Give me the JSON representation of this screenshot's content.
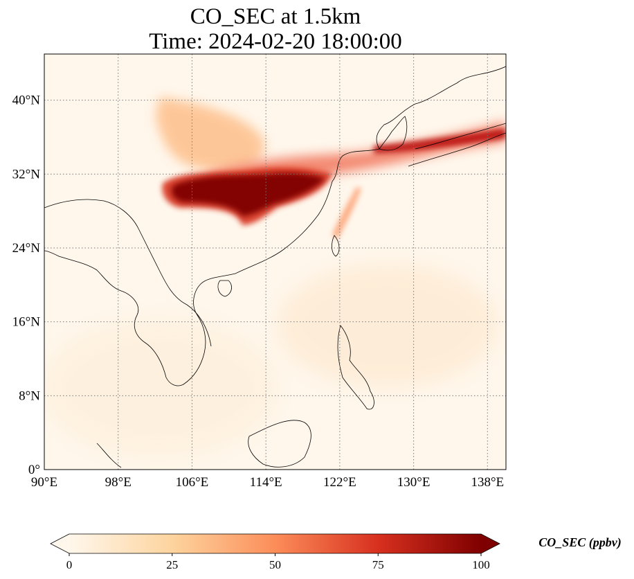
{
  "title": {
    "line1": "CO_SEC at 1.5km",
    "line2": "Time: 2024-02-20 18:00:00"
  },
  "map": {
    "lon_range": [
      90,
      140
    ],
    "lat_range": [
      0,
      45
    ],
    "lon_ticks": [
      {
        "value": 90,
        "label": "90°E"
      },
      {
        "value": 98,
        "label": "98°E"
      },
      {
        "value": 106,
        "label": "106°E"
      },
      {
        "value": 114,
        "label": "114°E"
      },
      {
        "value": 122,
        "label": "122°E"
      },
      {
        "value": 130,
        "label": "130°E"
      },
      {
        "value": 138,
        "label": "138°E"
      }
    ],
    "lat_ticks": [
      {
        "value": 0,
        "label": "0°"
      },
      {
        "value": 8,
        "label": "8°N"
      },
      {
        "value": 16,
        "label": "16°N"
      },
      {
        "value": 24,
        "label": "24°N"
      },
      {
        "value": 32,
        "label": "32°N"
      },
      {
        "value": 40,
        "label": "40°N"
      }
    ],
    "gridlines": "dotted gray",
    "plumes": [
      {
        "name": "plume-central-china-core",
        "lon": 111.5,
        "lat": 29.5,
        "value": 100
      },
      {
        "name": "plume-sichuan-west",
        "lon": 105.5,
        "lat": 30.0,
        "value": 90
      },
      {
        "name": "plume-yangtze-east",
        "lon": 117.5,
        "lat": 31.0,
        "value": 90
      },
      {
        "name": "plume-korea-strait",
        "lon": 127.5,
        "lat": 35.0,
        "value": 80
      },
      {
        "name": "plume-japan-band",
        "lon": 134.0,
        "lat": 35.2,
        "value": 65
      },
      {
        "name": "plume-north-china-haze",
        "lon": 107.0,
        "lat": 36.5,
        "value": 35
      },
      {
        "name": "plume-taiwan-strait",
        "lon": 121.5,
        "lat": 26.5,
        "value": 45
      }
    ]
  },
  "colorbar": {
    "label": "CO_SEC (ppbv)",
    "min": 0,
    "max": 100,
    "extend": "both",
    "colormap": "OrRd",
    "ticks": [
      {
        "value": 0,
        "label": "0"
      },
      {
        "value": 25,
        "label": "25"
      },
      {
        "value": 50,
        "label": "50"
      },
      {
        "value": 75,
        "label": "75"
      },
      {
        "value": 100,
        "label": "100"
      }
    ],
    "colors": [
      "#fff7ec",
      "#fdd49e",
      "#fc8d59",
      "#d7301f",
      "#7f0000"
    ]
  }
}
